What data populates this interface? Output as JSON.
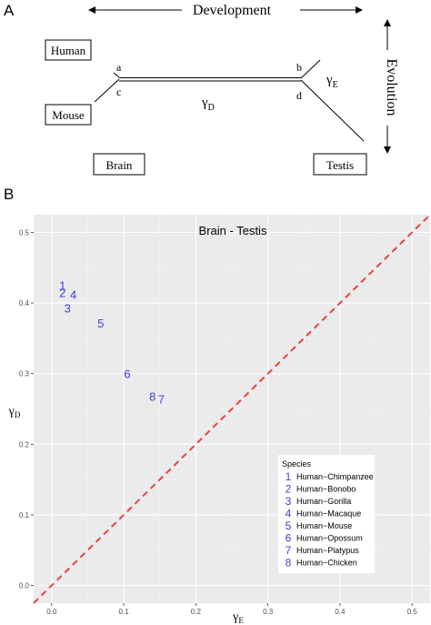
{
  "panel_a": {
    "label": "A",
    "development": "Development",
    "evolution": "Evolution",
    "human": "Human",
    "mouse": "Mouse",
    "brain": "Brain",
    "testis": "Testis",
    "node_a": "a",
    "node_b": "b",
    "node_c": "c",
    "node_d": "d",
    "gamma_d": "γ",
    "gamma_d_sub": "D",
    "gamma_e": "γ",
    "gamma_e_sub": "E"
  },
  "panel_b": {
    "label": "B"
  },
  "chart_data": {
    "type": "scatter",
    "title": "Brain - Testis",
    "xlabel": "γ",
    "xlabel_sub": "E",
    "ylabel": "γ",
    "ylabel_sub": "D",
    "xlim": [
      -0.025,
      0.525
    ],
    "ylim": [
      -0.025,
      0.525
    ],
    "x_ticks": [
      "0.0",
      "0.1",
      "0.2",
      "0.3",
      "0.4",
      "0.5"
    ],
    "y_ticks": [
      "0.0",
      "0.1",
      "0.2",
      "0.3",
      "0.4",
      "0.5"
    ],
    "grid": true,
    "reference_line": {
      "slope": 1,
      "intercept": 0,
      "color": "#e8433a",
      "style": "dashed"
    },
    "marker_color": "#3f3fd4",
    "points": [
      {
        "label": "1",
        "x": 0.015,
        "y": 0.425
      },
      {
        "label": "2",
        "x": 0.015,
        "y": 0.415
      },
      {
        "label": "4",
        "x": 0.03,
        "y": 0.412
      },
      {
        "label": "3",
        "x": 0.022,
        "y": 0.393
      },
      {
        "label": "5",
        "x": 0.068,
        "y": 0.372
      },
      {
        "label": "6",
        "x": 0.105,
        "y": 0.3
      },
      {
        "label": "8",
        "x": 0.14,
        "y": 0.268
      },
      {
        "label": "7",
        "x": 0.152,
        "y": 0.264
      }
    ],
    "legend": {
      "title": "Species",
      "placement": "bottom-right",
      "entries": [
        {
          "key": "1",
          "name": "Human−Chimpanzee"
        },
        {
          "key": "2",
          "name": "Human−Bonobo"
        },
        {
          "key": "3",
          "name": "Human−Gorilla"
        },
        {
          "key": "4",
          "name": "Human−Macaque"
        },
        {
          "key": "5",
          "name": "Human−Mouse"
        },
        {
          "key": "6",
          "name": "Human−Opossum"
        },
        {
          "key": "7",
          "name": "Human−Platypus"
        },
        {
          "key": "8",
          "name": "Human−Chicken"
        }
      ]
    }
  }
}
